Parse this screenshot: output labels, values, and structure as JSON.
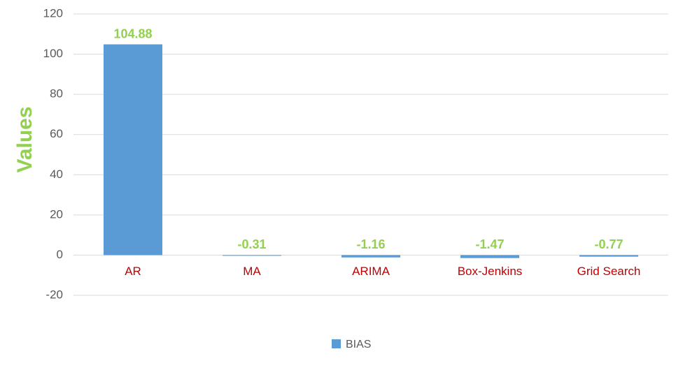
{
  "chart_data": {
    "type": "bar",
    "y_label": "Values",
    "categories": [
      "AR",
      "MA",
      "ARIMA",
      "Box-Jenkins",
      "Grid Search"
    ],
    "series": [
      {
        "name": "BIAS",
        "color": "#5b9bd5",
        "values": [
          104.88,
          -0.31,
          -1.16,
          -1.47,
          -0.77
        ]
      }
    ],
    "ylim": [
      -20,
      120
    ],
    "yticks": [
      -20,
      0,
      20,
      40,
      60,
      80,
      100,
      120
    ],
    "grid": true,
    "legend": "bottom"
  }
}
